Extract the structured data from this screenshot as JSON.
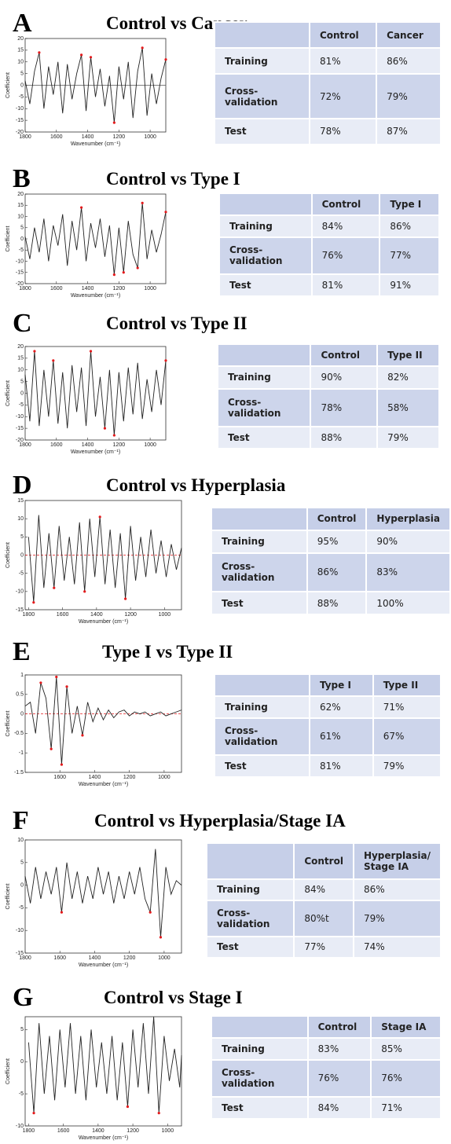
{
  "panels": [
    {
      "letter": "A",
      "title": "Control vs Cancer",
      "chart": {
        "type": "line",
        "xlabel": "Wavenumber (cm⁻¹)",
        "ylabel": "Coefficient",
        "color": "#222222",
        "marker_color": "#e41a1c",
        "xlim": [
          1800,
          900
        ],
        "ylim": [
          -20,
          20
        ],
        "xticks": [
          1800,
          1600,
          1400,
          1200,
          1000
        ],
        "yticks": [
          -20,
          -15,
          -10,
          -5,
          0,
          5,
          10,
          15,
          20
        ],
        "reference_line": {
          "value": 0,
          "color": "#555555",
          "dashed": false
        },
        "x": [
          1800,
          1770,
          1740,
          1710,
          1680,
          1650,
          1620,
          1590,
          1560,
          1530,
          1500,
          1470,
          1440,
          1410,
          1380,
          1350,
          1320,
          1290,
          1260,
          1230,
          1200,
          1170,
          1140,
          1110,
          1080,
          1050,
          1020,
          990,
          960,
          930,
          900
        ],
        "values": [
          2,
          -8,
          6,
          14,
          -10,
          8,
          -4,
          10,
          -12,
          9,
          -6,
          5,
          13,
          -11,
          12,
          -5,
          7,
          -9,
          4,
          -16,
          8,
          -6,
          10,
          -14,
          6,
          16,
          -13,
          5,
          -8,
          3,
          11
        ],
        "markers": {
          "x": [
            1710,
            1440,
            1380,
            1230,
            1050,
            900
          ],
          "values": [
            14,
            13,
            12,
            -16,
            16,
            11
          ]
        }
      },
      "table": {
        "columns": [
          "Control",
          "Cancer"
        ],
        "rows": [
          {
            "label": "Training",
            "values": [
              "81%",
              "86%"
            ]
          },
          {
            "label": "Cross-validation",
            "values": [
              "72%",
              "79%"
            ]
          },
          {
            "label": "Test",
            "values": [
              "78%",
              "87%"
            ]
          }
        ]
      }
    },
    {
      "letter": "B",
      "title": "Control vs Type I",
      "chart": {
        "type": "line",
        "xlabel": "Wavenumber (cm⁻¹)",
        "ylabel": "Coefficient",
        "color": "#222222",
        "marker_color": "#e41a1c",
        "xlim": [
          1800,
          900
        ],
        "ylim": [
          -20,
          20
        ],
        "xticks": [
          1800,
          1600,
          1400,
          1200,
          1000
        ],
        "yticks": [
          -20,
          -15,
          -10,
          -5,
          0,
          5,
          10,
          15,
          20
        ],
        "x": [
          1800,
          1770,
          1740,
          1710,
          1680,
          1650,
          1620,
          1590,
          1560,
          1530,
          1500,
          1470,
          1440,
          1410,
          1380,
          1350,
          1320,
          1290,
          1260,
          1230,
          1200,
          1170,
          1140,
          1110,
          1080,
          1050,
          1020,
          990,
          960,
          930,
          900
        ],
        "values": [
          1,
          -9,
          5,
          -6,
          9,
          -10,
          6,
          -3,
          11,
          -12,
          8,
          -5,
          14,
          -10,
          7,
          -4,
          9,
          -8,
          6,
          -16,
          5,
          -15,
          8,
          -7,
          -13,
          16,
          -9,
          4,
          -6,
          2,
          12
        ],
        "markers": {
          "x": [
            1440,
            1230,
            1170,
            1080,
            1050,
            900
          ],
          "values": [
            14,
            -16,
            -15,
            -13,
            16,
            12
          ]
        }
      },
      "table": {
        "columns": [
          "Control",
          "Type I"
        ],
        "rows": [
          {
            "label": "Training",
            "values": [
              "84%",
              "86%"
            ]
          },
          {
            "label": "Cross-validation",
            "values": [
              "76%",
              "77%"
            ]
          },
          {
            "label": "Test",
            "values": [
              "81%",
              "91%"
            ]
          }
        ]
      }
    },
    {
      "letter": "C",
      "title": "Control vs Type II",
      "chart": {
        "type": "line",
        "xlabel": "Wavenumber (cm⁻¹)",
        "ylabel": "Coefficient",
        "color": "#222222",
        "marker_color": "#e41a1c",
        "xlim": [
          1800,
          900
        ],
        "ylim": [
          -20,
          20
        ],
        "xticks": [
          1800,
          1600,
          1400,
          1200,
          1000
        ],
        "yticks": [
          -20,
          -15,
          -10,
          -5,
          0,
          5,
          10,
          15,
          20
        ],
        "x": [
          1800,
          1770,
          1740,
          1710,
          1680,
          1650,
          1620,
          1590,
          1560,
          1530,
          1500,
          1470,
          1440,
          1410,
          1380,
          1350,
          1320,
          1290,
          1260,
          1230,
          1200,
          1170,
          1140,
          1110,
          1080,
          1050,
          1020,
          990,
          960,
          930,
          900
        ],
        "values": [
          8,
          -12,
          18,
          -14,
          10,
          -10,
          14,
          -13,
          9,
          -15,
          12,
          -8,
          11,
          -14,
          18,
          -10,
          7,
          -15,
          10,
          -18,
          9,
          -12,
          11,
          -9,
          13,
          -11,
          6,
          -8,
          10,
          -5,
          14
        ],
        "markers": {
          "x": [
            1740,
            1620,
            1380,
            1290,
            1230,
            900
          ],
          "values": [
            18,
            14,
            18,
            -15,
            -18,
            14
          ]
        }
      },
      "table": {
        "columns": [
          "Control",
          "Type II"
        ],
        "rows": [
          {
            "label": "Training",
            "values": [
              "90%",
              "82%"
            ]
          },
          {
            "label": "Cross-validation",
            "values": [
              "78%",
              "58%"
            ]
          },
          {
            "label": "Test",
            "values": [
              "88%",
              "79%"
            ]
          }
        ]
      }
    },
    {
      "letter": "D",
      "title": "Control vs Hyperplasia",
      "chart": {
        "type": "line",
        "xlabel": "Wavenumber (cm⁻¹)",
        "ylabel": "Coefficient",
        "color": "#222222",
        "marker_color": "#e41a1c",
        "xlim": [
          1820,
          900
        ],
        "ylim": [
          -15,
          15
        ],
        "xticks": [
          1800,
          1600,
          1400,
          1200,
          1000
        ],
        "yticks": [
          -15,
          -10,
          -5,
          0,
          5,
          10,
          15
        ],
        "reference_line": {
          "value": 0,
          "color": "#e41a1c",
          "dashed": true
        },
        "x": [
          1800,
          1770,
          1740,
          1710,
          1680,
          1650,
          1620,
          1590,
          1560,
          1530,
          1500,
          1470,
          1440,
          1410,
          1380,
          1350,
          1320,
          1290,
          1260,
          1230,
          1200,
          1170,
          1140,
          1110,
          1080,
          1050,
          1020,
          990,
          960,
          930,
          900
        ],
        "values": [
          5,
          -13,
          11,
          -9,
          6,
          -9,
          8,
          -7,
          5,
          -8,
          9,
          -10,
          10,
          -6,
          10.5,
          -8,
          7,
          -9,
          6,
          -12,
          8,
          -7,
          5,
          -6,
          7,
          -5,
          4,
          -6,
          3,
          -4,
          2
        ],
        "markers": {
          "x": [
            1770,
            1650,
            1470,
            1380,
            1230
          ],
          "values": [
            -13,
            -9,
            -10,
            10.5,
            -12
          ]
        }
      },
      "table": {
        "columns": [
          "Control",
          "Hyperplasia"
        ],
        "rows": [
          {
            "label": "Training",
            "values": [
              "95%",
              "90%"
            ]
          },
          {
            "label": "Cross-validation",
            "values": [
              "86%",
              "83%"
            ]
          },
          {
            "label": "Test",
            "values": [
              "88%",
              "100%"
            ]
          }
        ]
      }
    },
    {
      "letter": "E",
      "title": "Type I vs Type II",
      "chart": {
        "type": "line",
        "xlabel": "Wavenumber (cm⁻¹)",
        "ylabel": "Coefficient",
        "color": "#222222",
        "marker_color": "#e41a1c",
        "xlim": [
          1800,
          900
        ],
        "ylim": [
          -1.5,
          1
        ],
        "xticks": [
          1600,
          1400,
          1200,
          1000
        ],
        "yticks": [
          -1.5,
          -1,
          -0.5,
          0,
          0.5,
          1
        ],
        "reference_line": {
          "value": 0,
          "color": "#e41a1c",
          "dashed": true
        },
        "x": [
          1800,
          1770,
          1740,
          1710,
          1680,
          1650,
          1620,
          1590,
          1560,
          1530,
          1500,
          1470,
          1440,
          1410,
          1380,
          1350,
          1320,
          1290,
          1260,
          1230,
          1200,
          1170,
          1140,
          1110,
          1080,
          1050,
          1020,
          990,
          960,
          930,
          900
        ],
        "values": [
          0.2,
          0.3,
          -0.5,
          0.8,
          0.4,
          -0.9,
          0.95,
          -1.3,
          0.7,
          -0.5,
          0.2,
          -0.55,
          0.3,
          -0.2,
          0.15,
          -0.15,
          0.1,
          -0.1,
          0.05,
          0.1,
          -0.05,
          0.05,
          0,
          0.05,
          -0.05,
          0,
          0.05,
          -0.05,
          0,
          0.05,
          0.1
        ],
        "markers": {
          "x": [
            1710,
            1650,
            1620,
            1590,
            1560,
            1470
          ],
          "values": [
            0.8,
            -0.9,
            0.95,
            -1.3,
            0.7,
            -0.55
          ]
        }
      },
      "table": {
        "columns": [
          "Type I",
          "Type II"
        ],
        "rows": [
          {
            "label": "Training",
            "values": [
              "62%",
              "71%"
            ]
          },
          {
            "label": "Cross-validation",
            "values": [
              "61%",
              "67%"
            ]
          },
          {
            "label": "Test",
            "values": [
              "81%",
              "79%"
            ]
          }
        ]
      }
    },
    {
      "letter": "F",
      "title": "Control vs Hyperplasia/Stage IA",
      "chart": {
        "type": "line",
        "xlabel": "Wavenumber (cm⁻¹)",
        "ylabel": "Coefficient",
        "color": "#222222",
        "marker_color": "#e41a1c",
        "xlim": [
          1800,
          900
        ],
        "ylim": [
          -15,
          10
        ],
        "xticks": [
          1800,
          1600,
          1400,
          1200,
          1000
        ],
        "yticks": [
          -15,
          -10,
          -5,
          0,
          5,
          10
        ],
        "x": [
          1800,
          1770,
          1740,
          1710,
          1680,
          1650,
          1620,
          1590,
          1560,
          1530,
          1500,
          1470,
          1440,
          1410,
          1380,
          1350,
          1320,
          1290,
          1260,
          1230,
          1200,
          1170,
          1140,
          1110,
          1080,
          1050,
          1020,
          990,
          960,
          930,
          900
        ],
        "values": [
          2,
          -4,
          4,
          -3,
          3,
          -2,
          4,
          -6,
          5,
          -3,
          3,
          -4,
          2,
          -3,
          4,
          -2,
          3,
          -4,
          2,
          -3,
          3,
          -2,
          4,
          -3,
          -6,
          8,
          -11.5,
          4,
          -2,
          1,
          0
        ],
        "markers": {
          "x": [
            1590,
            1080,
            1020
          ],
          "values": [
            -6,
            -6,
            -11.5
          ]
        }
      },
      "table": {
        "columns": [
          "Control",
          "Hyperplasia/ Stage IA"
        ],
        "rows": [
          {
            "label": "Training",
            "values": [
              "84%",
              "86%"
            ]
          },
          {
            "label": "Cross-validation",
            "values": [
              "80%t",
              "79%"
            ]
          },
          {
            "label": "Test",
            "values": [
              "77%",
              "74%"
            ]
          }
        ]
      }
    },
    {
      "letter": "G",
      "title": "Control vs Stage I",
      "chart": {
        "type": "line",
        "xlabel": "Wavenumber (cm⁻¹)",
        "ylabel": "Coefficient",
        "color": "#222222",
        "marker_color": "#e41a1c",
        "xlim": [
          1820,
          920
        ],
        "ylim": [
          -10,
          7
        ],
        "xticks": [
          1800,
          1600,
          1400,
          1200,
          1000
        ],
        "yticks": [
          -10,
          -5,
          0,
          5
        ],
        "x": [
          1800,
          1770,
          1740,
          1710,
          1680,
          1650,
          1620,
          1590,
          1560,
          1530,
          1500,
          1470,
          1440,
          1410,
          1380,
          1350,
          1320,
          1290,
          1260,
          1230,
          1200,
          1170,
          1140,
          1110,
          1080,
          1050,
          1020,
          990,
          960,
          930,
          920
        ],
        "values": [
          3,
          -8,
          6,
          -5,
          4,
          -6,
          5,
          -4,
          6,
          -5,
          4,
          -6,
          5,
          -4,
          3,
          -5,
          4,
          -6,
          3,
          -7,
          5,
          -4,
          6,
          -5,
          7,
          -8,
          4,
          -3,
          2,
          -4,
          1
        ],
        "markers": {
          "x": [
            1770,
            1230,
            1050
          ],
          "values": [
            -8,
            -7,
            -8
          ]
        }
      },
      "table": {
        "columns": [
          "Control",
          "Stage IA"
        ],
        "rows": [
          {
            "label": "Training",
            "values": [
              "83%",
              "85%"
            ]
          },
          {
            "label": "Cross-validation",
            "values": [
              "76%",
              "76%"
            ]
          },
          {
            "label": "Test",
            "values": [
              "84%",
              "71%"
            ]
          }
        ]
      }
    }
  ]
}
